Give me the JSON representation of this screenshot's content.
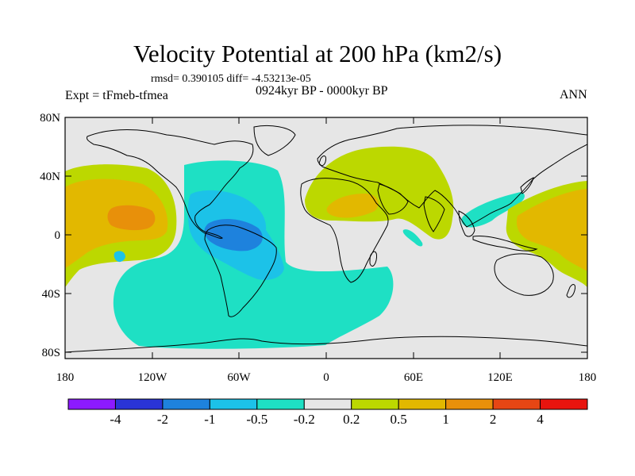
{
  "title": "Velocity Potential at 200 hPa (km2/s)",
  "stats": "rmsd= 0.390105 diff= -4.53213e-05",
  "left_label": "Expt = tFmeb-tfmea",
  "center_label": "0924kyr BP - 0000kyr BP",
  "right_label": "ANN",
  "lat_ticks": [
    "80N",
    "40N",
    "0",
    "40S",
    "80S"
  ],
  "lon_ticks": [
    "180",
    "120W",
    "60W",
    "0",
    "60E",
    "120E",
    "180"
  ],
  "colorbar": {
    "colors": [
      "#8c1aff",
      "#2a34d6",
      "#1e82dd",
      "#1cc2e8",
      "#1ee0c4",
      "#e6e6e6",
      "#bcd800",
      "#e2b800",
      "#e8900a",
      "#e64614",
      "#e8140e"
    ],
    "labels": [
      "-4",
      "-2",
      "-1",
      "-0.5",
      "-0.2",
      "0.2",
      "0.5",
      "1",
      "2",
      "4"
    ]
  },
  "colors": {
    "land_outline": "#000000",
    "background_field": "#e6e6e6"
  }
}
